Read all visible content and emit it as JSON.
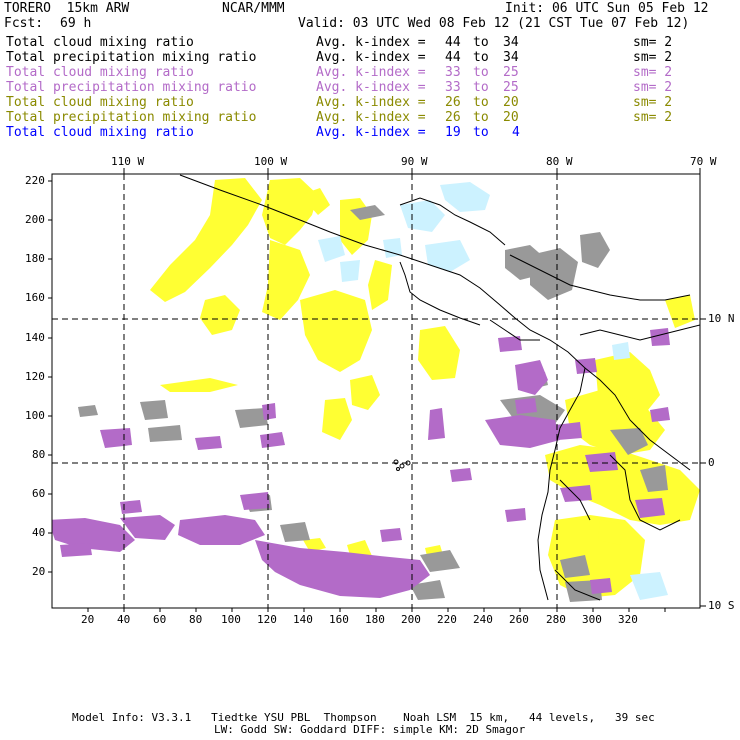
{
  "header": {
    "model": "TORERO  15km ARW",
    "org": "NCAR/MMM",
    "init": "Init: 06 UTC Sun 05 Feb 12",
    "fcst_label": "Fcst:",
    "fcst_value": "69 h",
    "valid": "Valid: 03 UTC Wed 08 Feb 12 (21 CST Tue 07 Feb 12)"
  },
  "legend": [
    {
      "name": "Total cloud mixing ratio",
      "kindex": "Avg. k-index = ",
      "from": "44",
      "to_word": "to",
      "to": "34",
      "sm": "sm= 2",
      "color": "#000000"
    },
    {
      "name": "Total precipitation mixing ratio",
      "kindex": "Avg. k-index = ",
      "from": "44",
      "to_word": "to",
      "to": "34",
      "sm": "sm= 2",
      "color": "#000000"
    },
    {
      "name": "Total cloud mixing ratio",
      "kindex": "Avg. k-index = ",
      "from": "33",
      "to_word": "to",
      "to": "25",
      "sm": "sm= 2",
      "color": "#b36bc8"
    },
    {
      "name": "Total precipitation mixing ratio",
      "kindex": "Avg. k-index = ",
      "from": "33",
      "to_word": "to",
      "to": "25",
      "sm": "sm= 2",
      "color": "#b36bc8"
    },
    {
      "name": "Total cloud mixing ratio",
      "kindex": "Avg. k-index = ",
      "from": "26",
      "to_word": "to",
      "to": "20",
      "sm": "sm= 2",
      "color": "#8a8a00"
    },
    {
      "name": "Total precipitation mixing ratio",
      "kindex": "Avg. k-index = ",
      "from": "26",
      "to_word": "to",
      "to": "20",
      "sm": "sm= 2",
      "color": "#8a8a00"
    },
    {
      "name": "Total cloud mixing ratio",
      "kindex": "Avg. k-index = ",
      "from": "19",
      "to_word": "to",
      "to": "4",
      "sm": "",
      "color": "#0000ff"
    }
  ],
  "axes": {
    "top_longitudes": [
      "110 W",
      "100 W",
      "90 W",
      "80 W",
      "70 W"
    ],
    "right_latitudes": [
      "10 N",
      "0",
      "10 S"
    ],
    "y_ticks": [
      "220",
      "200",
      "180",
      "160",
      "140",
      "120",
      "100",
      "80",
      "60",
      "40",
      "20"
    ],
    "x_ticks": [
      "20",
      "40",
      "60",
      "80",
      "100",
      "120",
      "140",
      "160",
      "180",
      "200",
      "220",
      "240",
      "260",
      "280",
      "300",
      "320"
    ]
  },
  "footer": {
    "line1": "Model Info: V3.3.1   Tiedtke YSU PBL  Thompson    Noah LSM  15 km,   44 levels,   39 sec",
    "line2": "LW: Godd SW: Goddard DIFF: simple KM: 2D Smagor"
  },
  "colors": {
    "gray": "#999999",
    "purple": "#b36bc8",
    "yellow": "#ffff33",
    "cyan": "#ccf2ff"
  }
}
